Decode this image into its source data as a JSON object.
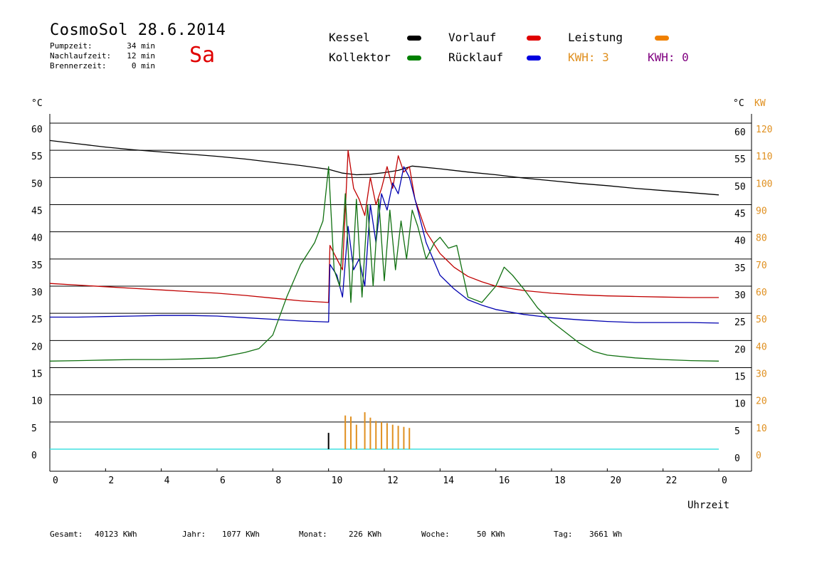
{
  "header": {
    "title": "CosmoSol 28.6.2014",
    "day": "Sa",
    "stats": [
      {
        "label": "Pumpzeit:",
        "value": "34 min"
      },
      {
        "label": "Nachlaufzeit:",
        "value": "12 min"
      },
      {
        "label": "Brennerzeit:",
        "value": "0 min"
      }
    ]
  },
  "legend": {
    "kessel": {
      "label": "Kessel",
      "color": "#000000"
    },
    "vorlauf": {
      "label": "Vorlauf",
      "color": "#e00000"
    },
    "leistung": {
      "label": "Leistung",
      "color": "#f08000"
    },
    "kollektor": {
      "label": "Kollektor",
      "color": "#008000"
    },
    "ruecklauf": {
      "label": "Rücklauf",
      "color": "#0000e0"
    },
    "kwh1": {
      "label": "KWH: 3",
      "color": "#e09020"
    },
    "kwh2": {
      "label": "KWH: 0",
      "color": "#800080"
    }
  },
  "footer": {
    "gesamt_label": "Gesamt:",
    "gesamt_value": "40123 KWh",
    "jahr_label": "Jahr:",
    "jahr_value": "1077 KWh",
    "monat_label": "Monat:",
    "monat_value": "226 KWh",
    "woche_label": "Woche:",
    "woche_value": "50 KWh",
    "tag_label": "Tag:",
    "tag_value": "3661 Wh"
  },
  "chart_data": {
    "type": "line",
    "xlabel": "Uhrzeit",
    "ylabel_left": "°C",
    "ylabel_right": "°C",
    "ylabel_right2": "KW",
    "xlim": [
      0,
      24
    ],
    "ylim": [
      0,
      65
    ],
    "x_ticks": [
      "0",
      "2",
      "4",
      "6",
      "8",
      "10",
      "12",
      "14",
      "16",
      "18",
      "20",
      "22",
      "0"
    ],
    "y_ticks": [
      0,
      5,
      10,
      15,
      20,
      25,
      30,
      35,
      40,
      45,
      50,
      55,
      60
    ],
    "y2_ticks": [
      0,
      10,
      20,
      30,
      40,
      50,
      60,
      70,
      80,
      90,
      100,
      110,
      120
    ],
    "grid": true,
    "colors": {
      "kessel": "#000000",
      "vorlauf": "#c00000",
      "ruecklauf": "#0000b0",
      "kollektor": "#107010",
      "leistung": "#e09020",
      "baseline": "#40e0e0"
    },
    "series": [
      {
        "name": "Kessel",
        "x": [
          0,
          1,
          2,
          3,
          4,
          5,
          6,
          7,
          8,
          9,
          10,
          10.5,
          11,
          11.5,
          12,
          12.5,
          13,
          14,
          15,
          16,
          17,
          18,
          19,
          20,
          21,
          22,
          23,
          24
        ],
        "values": [
          56.8,
          56.2,
          55.6,
          55.1,
          54.7,
          54.3,
          53.9,
          53.4,
          52.8,
          52.2,
          51.5,
          50.8,
          50.5,
          50.6,
          50.9,
          51.3,
          52.1,
          51.6,
          51.0,
          50.5,
          49.9,
          49.4,
          48.9,
          48.5,
          48.0,
          47.6,
          47.2,
          46.8
        ]
      },
      {
        "name": "Vorlauf",
        "x": [
          0,
          1,
          2,
          3,
          4,
          5,
          6,
          7,
          8,
          9,
          10,
          10.05,
          10.3,
          10.5,
          10.7,
          10.9,
          11.1,
          11.3,
          11.5,
          11.7,
          11.9,
          12.1,
          12.3,
          12.5,
          12.7,
          12.9,
          13.1,
          13.5,
          14,
          14.5,
          15,
          15.5,
          16,
          17,
          18,
          19,
          20,
          21,
          22,
          23,
          24
        ],
        "values": [
          30.5,
          30.2,
          29.9,
          29.6,
          29.3,
          29.0,
          28.7,
          28.3,
          27.8,
          27.3,
          27.0,
          37.5,
          35.0,
          33.0,
          55.0,
          48.0,
          46.0,
          43.0,
          50.0,
          45.0,
          48.0,
          52.0,
          48.0,
          54.0,
          51.0,
          52.0,
          46.0,
          40.0,
          36.0,
          33.5,
          31.8,
          30.8,
          30.0,
          29.2,
          28.7,
          28.4,
          28.2,
          28.1,
          28.0,
          27.9,
          27.9
        ]
      },
      {
        "name": "Rücklauf",
        "x": [
          0,
          1,
          2,
          3,
          4,
          5,
          6,
          7,
          8,
          9,
          10,
          10.05,
          10.3,
          10.5,
          10.7,
          10.9,
          11.1,
          11.3,
          11.5,
          11.7,
          11.9,
          12.1,
          12.3,
          12.5,
          12.7,
          12.9,
          13.1,
          13.5,
          14,
          14.5,
          15,
          15.5,
          16,
          17,
          18,
          19,
          20,
          21,
          22,
          23,
          24
        ],
        "values": [
          24.3,
          24.3,
          24.4,
          24.5,
          24.6,
          24.6,
          24.5,
          24.2,
          23.9,
          23.6,
          23.4,
          34.0,
          32.0,
          28.0,
          41.0,
          33.0,
          35.0,
          30.0,
          45.0,
          38.0,
          47.0,
          44.0,
          49.0,
          47.0,
          52.0,
          50.0,
          46.0,
          38.0,
          32.0,
          29.5,
          27.5,
          26.5,
          25.7,
          24.8,
          24.2,
          23.8,
          23.5,
          23.3,
          23.3,
          23.3,
          23.2
        ]
      },
      {
        "name": "Kollektor",
        "x": [
          0,
          1,
          2,
          3,
          4,
          5,
          6,
          7,
          7.5,
          8,
          8.5,
          9,
          9.5,
          9.8,
          10,
          10.2,
          10.4,
          10.6,
          10.8,
          11,
          11.2,
          11.4,
          11.6,
          11.8,
          12,
          12.2,
          12.4,
          12.6,
          12.8,
          13,
          13.2,
          13.5,
          13.8,
          14,
          14.3,
          14.6,
          15,
          15.5,
          16,
          16.3,
          16.6,
          17,
          17.5,
          18,
          18.5,
          19,
          19.5,
          20,
          21,
          22,
          23,
          24
        ],
        "values": [
          16.2,
          16.3,
          16.4,
          16.5,
          16.5,
          16.6,
          16.8,
          17.8,
          18.5,
          21.0,
          28.0,
          34.0,
          38.0,
          42.0,
          52.0,
          33.0,
          30.0,
          47.0,
          27.0,
          46.0,
          28.0,
          45.0,
          30.0,
          46.0,
          31.0,
          44.0,
          33.0,
          42.0,
          35.0,
          44.0,
          41.0,
          35.0,
          38.0,
          39.0,
          37.0,
          37.5,
          28.0,
          27.0,
          30.0,
          33.5,
          32.0,
          29.5,
          26.0,
          23.5,
          21.5,
          19.5,
          18.0,
          17.3,
          16.8,
          16.5,
          16.3,
          16.2
        ]
      },
      {
        "name": "Leistung",
        "type": "impulse",
        "x": [
          10.0,
          10.6,
          10.8,
          11.0,
          11.3,
          11.5,
          11.7,
          11.9,
          12.1,
          12.3,
          12.5,
          12.7,
          12.9
        ],
        "values": [
          3.0,
          6.2,
          6.0,
          4.5,
          6.8,
          5.8,
          5.2,
          5.0,
          4.8,
          4.5,
          4.3,
          4.1,
          3.9
        ]
      }
    ]
  }
}
